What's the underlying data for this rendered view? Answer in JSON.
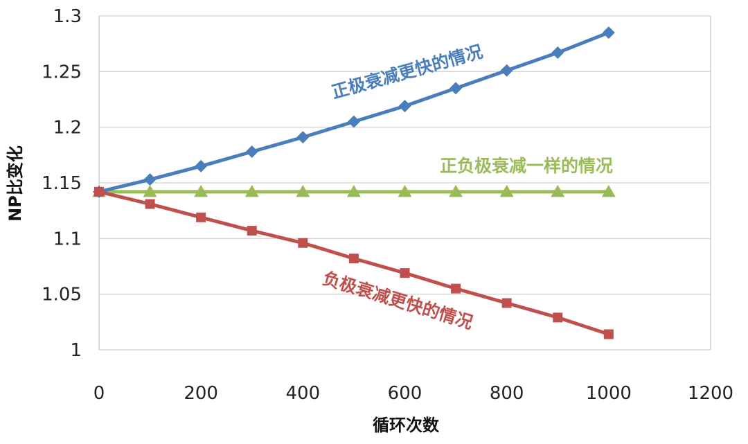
{
  "chart_data": {
    "type": "line",
    "title": "",
    "xlabel": "循环次数",
    "ylabel": "NP比变化",
    "xlim": [
      0,
      1200
    ],
    "ylim": [
      1.0,
      1.3
    ],
    "x_ticks": [
      "0",
      "200",
      "400",
      "600",
      "800",
      "1000",
      "1200"
    ],
    "y_ticks": [
      "1",
      "1.05",
      "1.1",
      "1.15",
      "1.2",
      "1.25",
      "1.3"
    ],
    "grid": "horizontal",
    "legend": "none",
    "x": [
      0,
      100,
      200,
      300,
      400,
      500,
      600,
      700,
      800,
      900,
      1000
    ],
    "series": [
      {
        "color": "#4a7ebb",
        "marker": "diamond",
        "values": [
          1.142,
          1.153,
          1.165,
          1.178,
          1.191,
          1.205,
          1.219,
          1.235,
          1.251,
          1.267,
          1.285
        ]
      },
      {
        "color": "#9bbb59",
        "marker": "triangle",
        "values": [
          1.142,
          1.142,
          1.142,
          1.142,
          1.142,
          1.142,
          1.142,
          1.142,
          1.142,
          1.142,
          1.142
        ]
      },
      {
        "color": "#c0504d",
        "marker": "square",
        "values": [
          1.142,
          1.131,
          1.119,
          1.107,
          1.096,
          1.082,
          1.069,
          1.055,
          1.042,
          1.029,
          1.014
        ]
      }
    ],
    "annotations": [
      {
        "text": "正极衰减更快的情况",
        "color": "#4a7ebb"
      },
      {
        "text": "正负极衰减一样的情况",
        "color": "#9bbb59"
      },
      {
        "text": "负极衰减更快的情况",
        "color": "#c0504d"
      }
    ]
  }
}
